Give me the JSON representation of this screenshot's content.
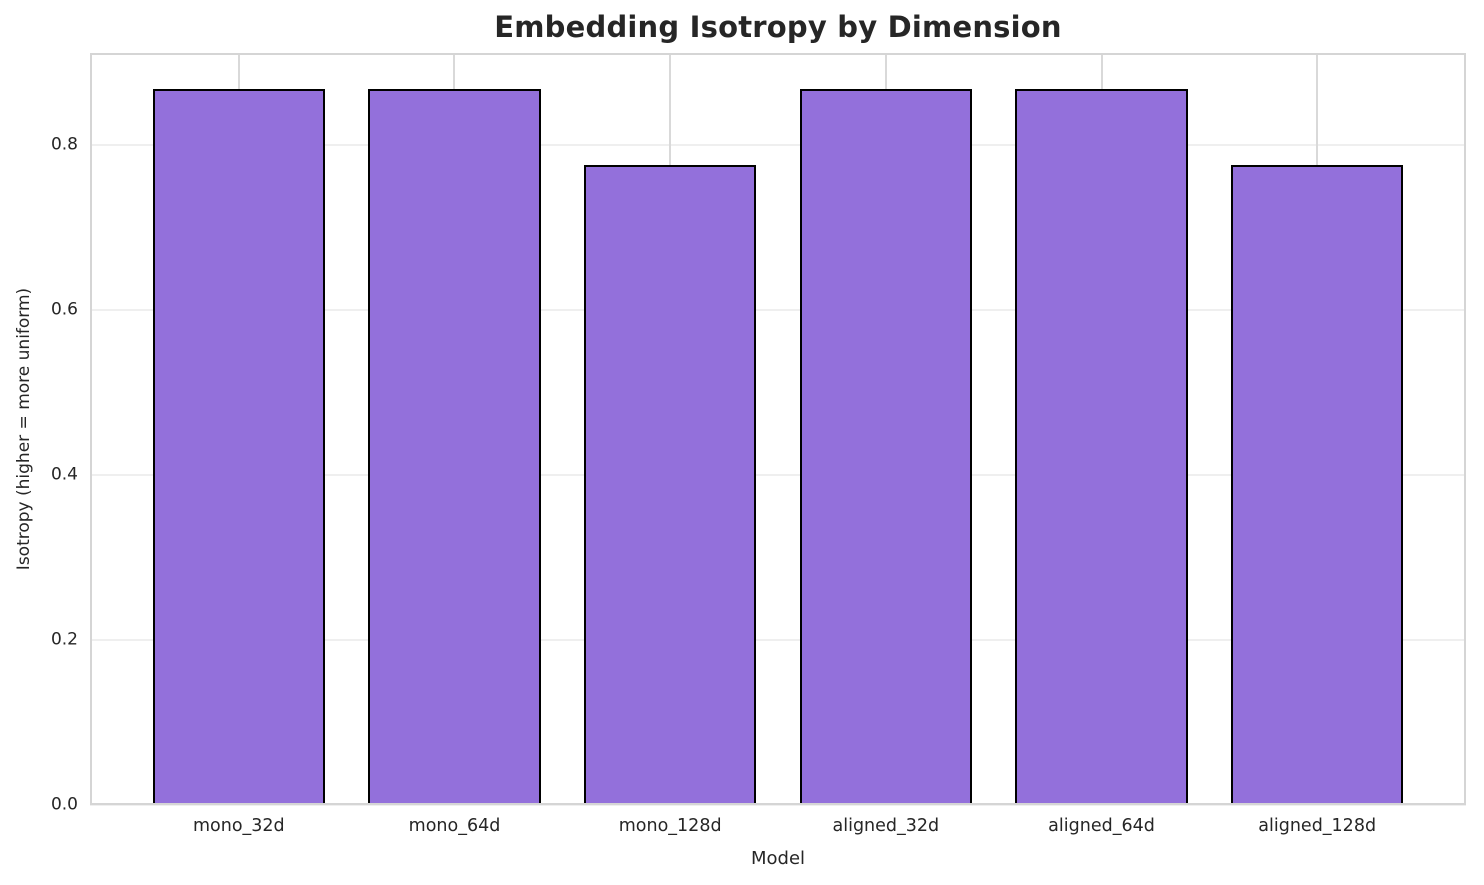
{
  "chart_data": {
    "type": "bar",
    "title": "Embedding Isotropy by Dimension",
    "xlabel": "Model",
    "ylabel": "Isotropy (higher = more uniform)",
    "categories": [
      "mono_32d",
      "mono_64d",
      "mono_128d",
      "aligned_32d",
      "aligned_64d",
      "aligned_128d"
    ],
    "values": [
      0.868,
      0.868,
      0.776,
      0.868,
      0.868,
      0.776
    ],
    "ylim": [
      0,
      0.912
    ],
    "xlim": [
      -0.69,
      5.69
    ],
    "yticks": [
      0.0,
      0.2,
      0.4,
      0.6,
      0.8
    ],
    "ytick_labels": [
      "0.0",
      "0.2",
      "0.4",
      "0.6",
      "0.8"
    ],
    "bar_width_units": 0.8,
    "grid": true,
    "legend_position": "none",
    "colors": {
      "bar_fill": "#9370DB",
      "bar_edge": "#000000",
      "grid_horizontal": "#EFEFEF",
      "grid_vertical": "#D9D9D9",
      "spine": "#D5D5D5",
      "text": "#262626"
    }
  }
}
